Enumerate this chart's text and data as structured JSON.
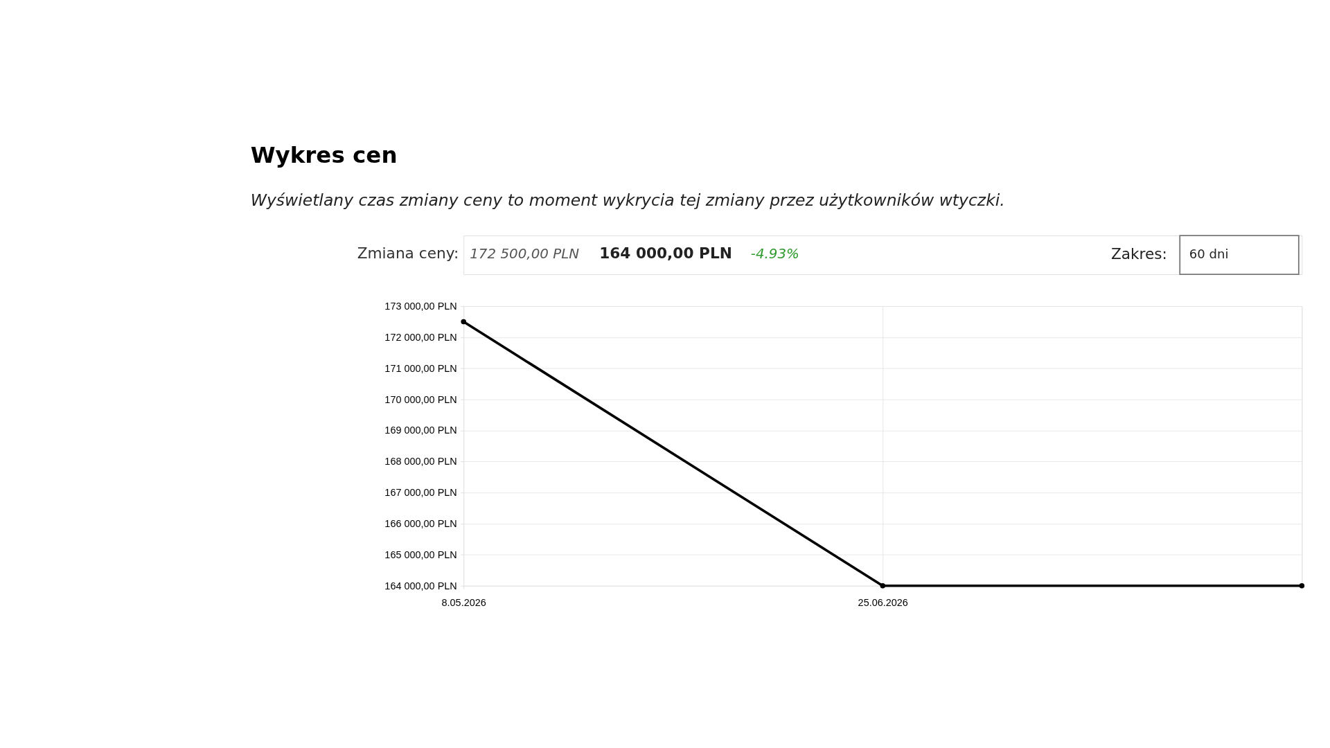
{
  "chart_data": {
    "type": "line",
    "title": "Wykres cen",
    "subtitle": "Wyświetlany czas zmiany ceny to moment wykrycia tej zmiany przez użytkowników wtyczki.",
    "annotations": [
      "Zmiana ceny:",
      "172 500,00 PLN",
      "164 000,00 PLN",
      "-4.93%",
      "Zakres:",
      "60 dni"
    ],
    "categories": [
      "8.05.2026",
      "25.06.2026",
      null
    ],
    "series": [
      {
        "color": "#000000",
        "values": [
          172500,
          164000,
          164000
        ]
      }
    ],
    "ylim": [
      164000,
      173000
    ],
    "yticks": [
      {
        "value": 164000,
        "label": "164 000,00 PLN"
      },
      {
        "value": 165000,
        "label": "165 000,00 PLN"
      },
      {
        "value": 166000,
        "label": "166 000,00 PLN"
      },
      {
        "value": 167000,
        "label": "167 000,00 PLN"
      },
      {
        "value": 168000,
        "label": "168 000,00 PLN"
      },
      {
        "value": 169000,
        "label": "169 000,00 PLN"
      },
      {
        "value": 170000,
        "label": "170 000,00 PLN"
      },
      {
        "value": 171000,
        "label": "171 000,00 PLN"
      },
      {
        "value": 172000,
        "label": "172 000,00 PLN"
      },
      {
        "value": 173000,
        "label": "173 000,00 PLN"
      }
    ],
    "grid": true,
    "marker": "circle",
    "line_style": "solid"
  }
}
